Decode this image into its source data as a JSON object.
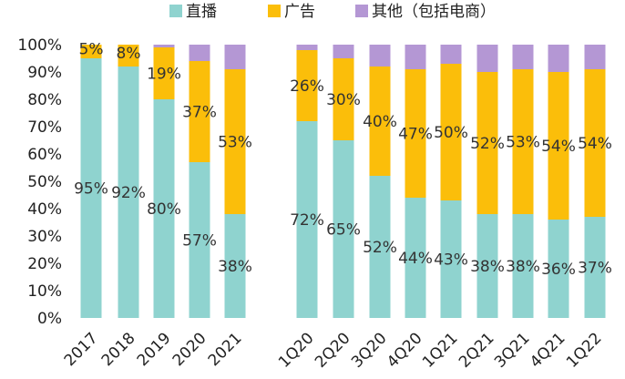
{
  "chart_data": {
    "type": "bar",
    "stacked": true,
    "title": "",
    "xlabel": "",
    "ylabel": "",
    "ylim": [
      0,
      100
    ],
    "yticks": [
      "0%",
      "10%",
      "20%",
      "30%",
      "40%",
      "50%",
      "60%",
      "70%",
      "80%",
      "90%",
      "100%"
    ],
    "legend_position": "top",
    "categories": [
      "2017",
      "2018",
      "2019",
      "2020",
      "2021",
      "1Q20",
      "2Q20",
      "3Q20",
      "4Q20",
      "1Q21",
      "2Q21",
      "3Q21",
      "4Q21",
      "1Q22"
    ],
    "series": [
      {
        "name": "直播",
        "color": "#8fd3cf",
        "values": [
          95,
          92,
          80,
          57,
          38,
          72,
          65,
          52,
          44,
          43,
          38,
          38,
          36,
          37
        ],
        "labels": [
          "95%",
          "92%",
          "80%",
          "57%",
          "38%",
          "72%",
          "65%",
          "52%",
          "44%",
          "43%",
          "38%",
          "38%",
          "36%",
          "37%"
        ]
      },
      {
        "name": "广告",
        "color": "#fbbe0a",
        "values": [
          5,
          8,
          19,
          37,
          53,
          26,
          30,
          40,
          47,
          50,
          52,
          53,
          54,
          54
        ],
        "labels": [
          "5%",
          "8%",
          "19%",
          "37%",
          "53%",
          "26%",
          "30%",
          "40%",
          "47%",
          "50%",
          "52%",
          "53%",
          "54%",
          "54%"
        ]
      },
      {
        "name": "其他（包括电商）",
        "color": "#b497d4",
        "values": [
          0,
          0,
          1,
          6,
          9,
          2,
          5,
          8,
          9,
          7,
          10,
          9,
          10,
          9
        ],
        "labels": []
      }
    ]
  }
}
